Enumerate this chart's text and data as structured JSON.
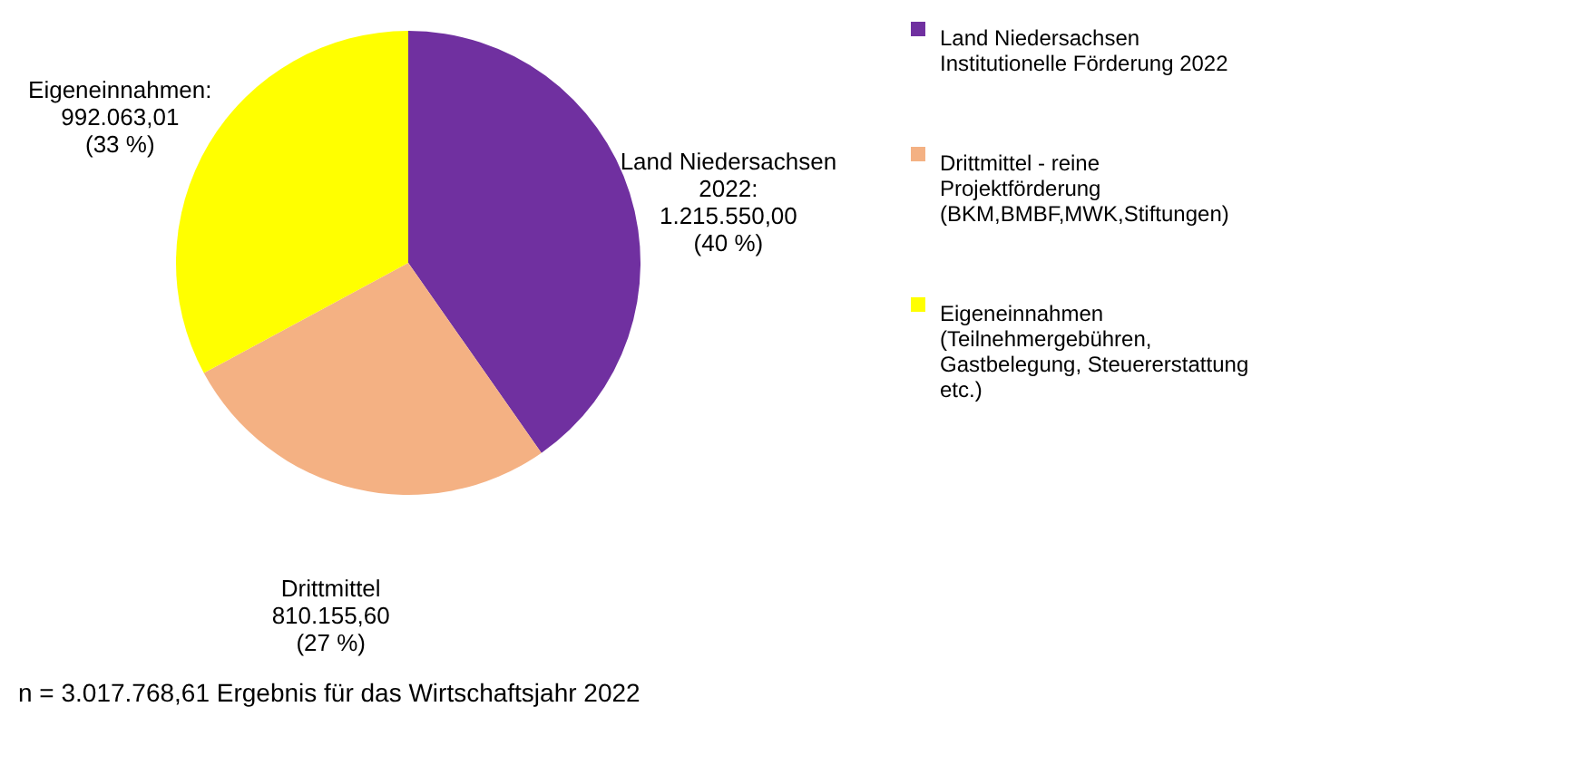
{
  "chart_data": {
    "type": "pie",
    "categories": [
      "Land Niedersachsen Institutionelle Förderung 2022",
      "Drittmittel - reine Projektförderung (BKM,BMBF,MWK,Stiftungen)",
      "Eigeneinnahmen (Teilnehmergebühren, Gastbelegung, Steuererstattung etc.)"
    ],
    "values": [
      1215550.0,
      810155.6,
      992063.01
    ],
    "colors": [
      "#7030a0",
      "#f4b183",
      "#ffff00"
    ],
    "value_labels": [
      "Land Niedersachsen 2022: 1.215.550,00 (40 %)",
      "Drittmittel 810.155,60 (27 %)",
      "Eigeneinnahmen: 992.063,01 (33 %)"
    ],
    "legend": "right",
    "annotations": [
      "n = 3.017.768,61 Ergebnis für das Wirtschaftsjahr 2022"
    ]
  }
}
